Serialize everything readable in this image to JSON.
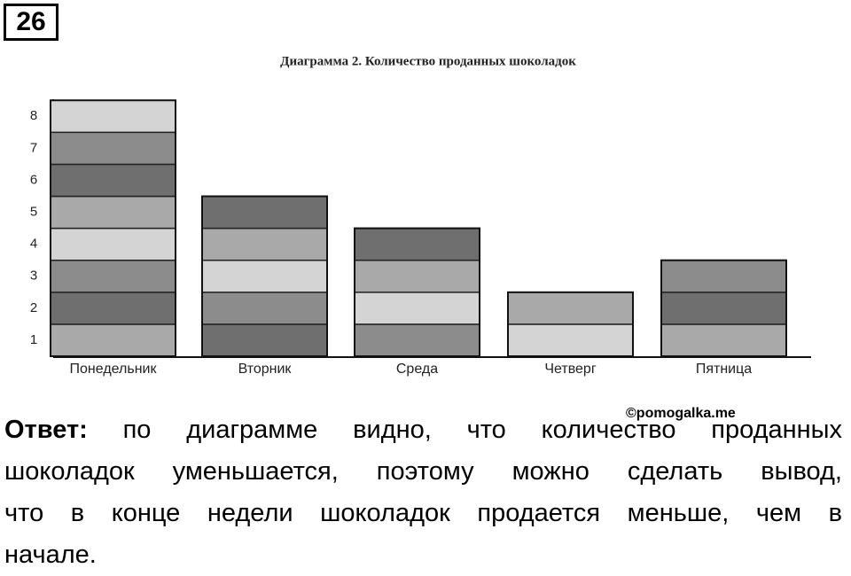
{
  "header": {
    "number": "26"
  },
  "chart_data": {
    "type": "bar",
    "title": "Диаграмма 2. Количество проданных шоколадок",
    "categories": [
      "Понедельник",
      "Вторник",
      "Среда",
      "Четверг",
      "Пятница"
    ],
    "values": [
      8,
      5,
      4,
      2,
      3
    ],
    "colors": [
      "#a9a9a9",
      "#6f6f6f",
      "#8c8c8c",
      "#d4d4d4"
    ],
    "ylim": [
      0,
      8.2
    ],
    "yticks": [
      1,
      2,
      3,
      4,
      5,
      6,
      7,
      8
    ]
  },
  "watermark": "©pomogalka.me",
  "answer": {
    "label": "Ответ:",
    "lines": [
      " по диаграмме видно, что количество проданных",
      "шоколадок уменьшается, поэтому  можно сделать вывод,",
      "что в конце недели шоколадок продается меньше, чем в",
      "начале."
    ]
  }
}
